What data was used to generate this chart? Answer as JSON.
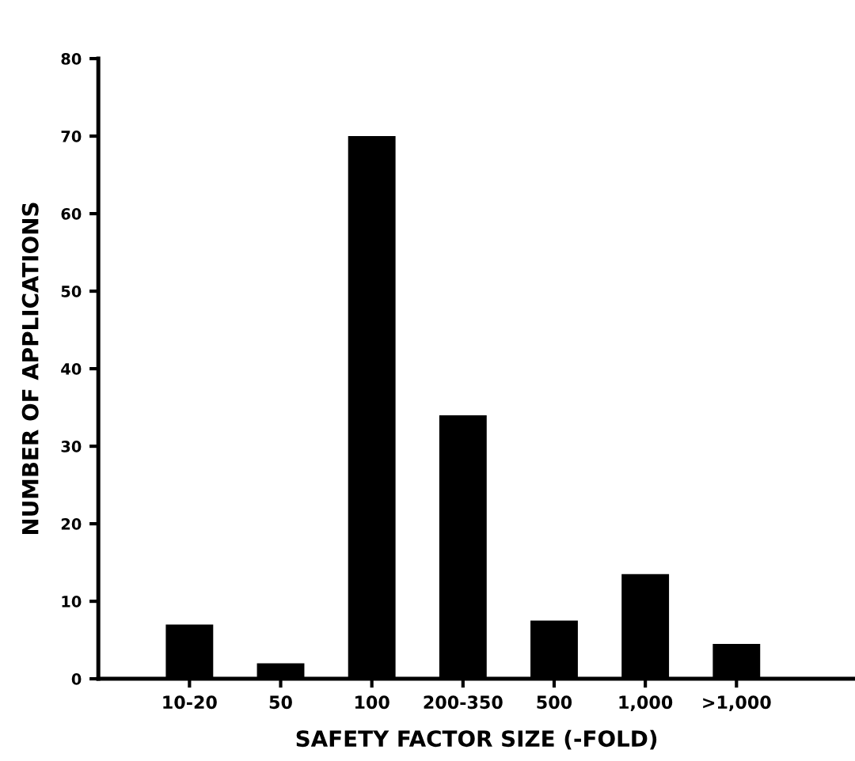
{
  "chart_data": {
    "type": "bar",
    "xlabel": "SAFETY FACTOR SIZE (-FOLD)",
    "ylabel": "NUMBER OF APPLICATIONS",
    "categories": [
      "10-20",
      "50",
      "100",
      "200-350",
      "500",
      "1,000",
      ">1,000"
    ],
    "values": [
      7,
      2,
      70,
      34,
      7.5,
      13.5,
      4.5
    ],
    "color": "#000000",
    "ylim": [
      0,
      80
    ],
    "yticks": [
      0,
      10,
      20,
      30,
      40,
      50,
      60,
      70,
      80
    ],
    "grid": false,
    "legend": false
  }
}
